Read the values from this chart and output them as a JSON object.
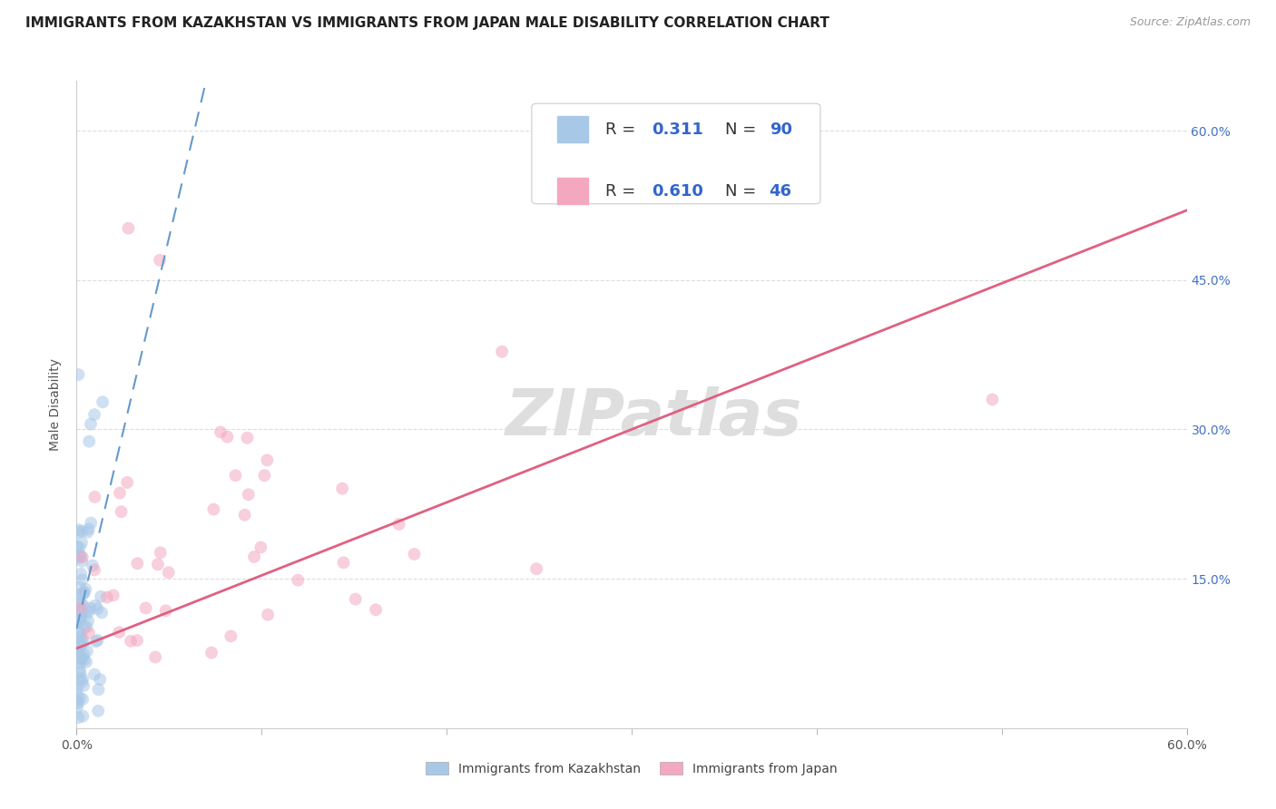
{
  "title": "IMMIGRANTS FROM KAZAKHSTAN VS IMMIGRANTS FROM JAPAN MALE DISABILITY CORRELATION CHART",
  "source": "Source: ZipAtlas.com",
  "ylabel": "Male Disability",
  "kaz_label": "Immigrants from Kazakhstan",
  "jpn_label": "Immigrants from Japan",
  "R_kaz": 0.311,
  "N_kaz": 90,
  "R_jpn": 0.61,
  "N_jpn": 46,
  "xlim": [
    0.0,
    0.6
  ],
  "ylim": [
    0.0,
    0.65
  ],
  "right_yticks": [
    0.15,
    0.3,
    0.45,
    0.6
  ],
  "right_ytick_labels": [
    "15.0%",
    "30.0%",
    "45.0%",
    "60.0%"
  ],
  "kaz_color": "#A8C8E8",
  "jpn_color": "#F4A8C0",
  "kaz_line_color": "#6699CC",
  "jpn_line_color": "#E06080",
  "background_color": "#ffffff",
  "grid_color": "#DDDDDD",
  "watermark_text": "ZIPatlas",
  "title_fontsize": 11,
  "source_fontsize": 9,
  "scatter_size": 100,
  "scatter_alpha": 0.55
}
